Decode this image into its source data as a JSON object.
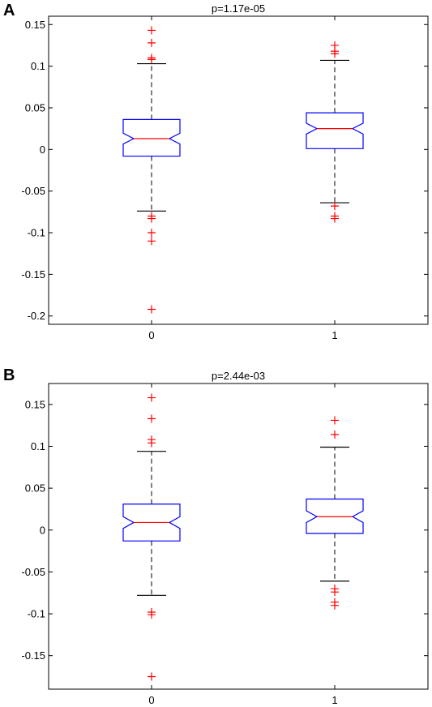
{
  "panels": [
    {
      "letter": "A"
    },
    {
      "letter": "B"
    }
  ],
  "colors": {
    "box": "#0000ff",
    "median": "#ff0000",
    "outlier": "#ff0000",
    "whisker": "#000000",
    "axis": "#000000"
  },
  "chart_data": [
    {
      "type": "box",
      "title": "p=1.17e-05",
      "xlabel": "",
      "ylabel": "",
      "categories": [
        "0",
        "1"
      ],
      "ylim": [
        -0.21,
        0.16
      ],
      "yticks": [
        -0.2,
        -0.15,
        -0.1,
        -0.05,
        0,
        0.05,
        0.1,
        0.15
      ],
      "ytick_labels": [
        "-0.2",
        "-0.15",
        "-0.1",
        "-0.05",
        "0",
        "0.05",
        "0.1",
        "0.15"
      ],
      "notched": true,
      "grid": false,
      "boxes": [
        {
          "category": "0",
          "q1": -0.008,
          "median": 0.013,
          "q3": 0.036,
          "notch_low": 0.0065,
          "notch_high": 0.0195,
          "whisker_low": -0.074,
          "whisker_high": 0.103,
          "outliers": [
            0.143,
            0.128,
            0.11,
            0.108,
            -0.08,
            -0.083,
            -0.1,
            -0.11,
            -0.192
          ]
        },
        {
          "category": "1",
          "q1": 0.001,
          "median": 0.025,
          "q3": 0.044,
          "notch_low": 0.0185,
          "notch_high": 0.0315,
          "whisker_low": -0.064,
          "whisker_high": 0.107,
          "outliers": [
            0.125,
            0.118,
            0.115,
            -0.068,
            -0.08,
            -0.083
          ]
        }
      ]
    },
    {
      "type": "box",
      "title": "p=2.44e-03",
      "xlabel": "",
      "ylabel": "",
      "categories": [
        "0",
        "1"
      ],
      "ylim": [
        -0.19,
        0.175
      ],
      "yticks": [
        -0.15,
        -0.1,
        -0.05,
        0,
        0.05,
        0.1,
        0.15
      ],
      "ytick_labels": [
        "-0.15",
        "-0.1",
        "-0.05",
        "0",
        "0.05",
        "0.1",
        "0.15"
      ],
      "notched": true,
      "grid": false,
      "boxes": [
        {
          "category": "0",
          "q1": -0.013,
          "median": 0.009,
          "q3": 0.031,
          "notch_low": 0.002,
          "notch_high": 0.016,
          "whisker_low": -0.078,
          "whisker_high": 0.094,
          "outliers": [
            0.158,
            0.133,
            0.108,
            0.104,
            -0.098,
            -0.101,
            -0.175
          ]
        },
        {
          "category": "1",
          "q1": -0.004,
          "median": 0.016,
          "q3": 0.037,
          "notch_low": 0.009,
          "notch_high": 0.023,
          "whisker_low": -0.061,
          "whisker_high": 0.099,
          "outliers": [
            0.131,
            0.114,
            -0.07,
            -0.074,
            -0.086,
            -0.09
          ]
        }
      ]
    }
  ]
}
